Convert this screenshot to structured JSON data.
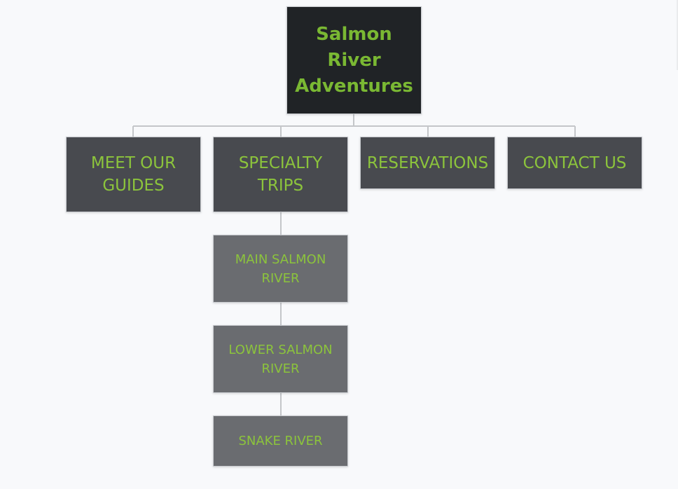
{
  "diagram": {
    "root": {
      "label": "Salmon River Adventures"
    },
    "level1": [
      {
        "label": "MEET OUR GUIDES"
      },
      {
        "label": "SPECIALTY TRIPS"
      },
      {
        "label": "RESERVATIONS"
      },
      {
        "label": "CONTACT US"
      }
    ],
    "specialty_children": [
      {
        "label": "MAIN SALMON RIVER"
      },
      {
        "label": "LOWER SALMON RIVER"
      },
      {
        "label": "SNAKE RIVER"
      }
    ]
  },
  "colors": {
    "background": "#f8f9fb",
    "root_fill": "#202326",
    "level1_fill": "#484a4f",
    "level2_fill": "#6a6c70",
    "text_green": "#8cc43c",
    "connector": "#c4c6c9"
  }
}
